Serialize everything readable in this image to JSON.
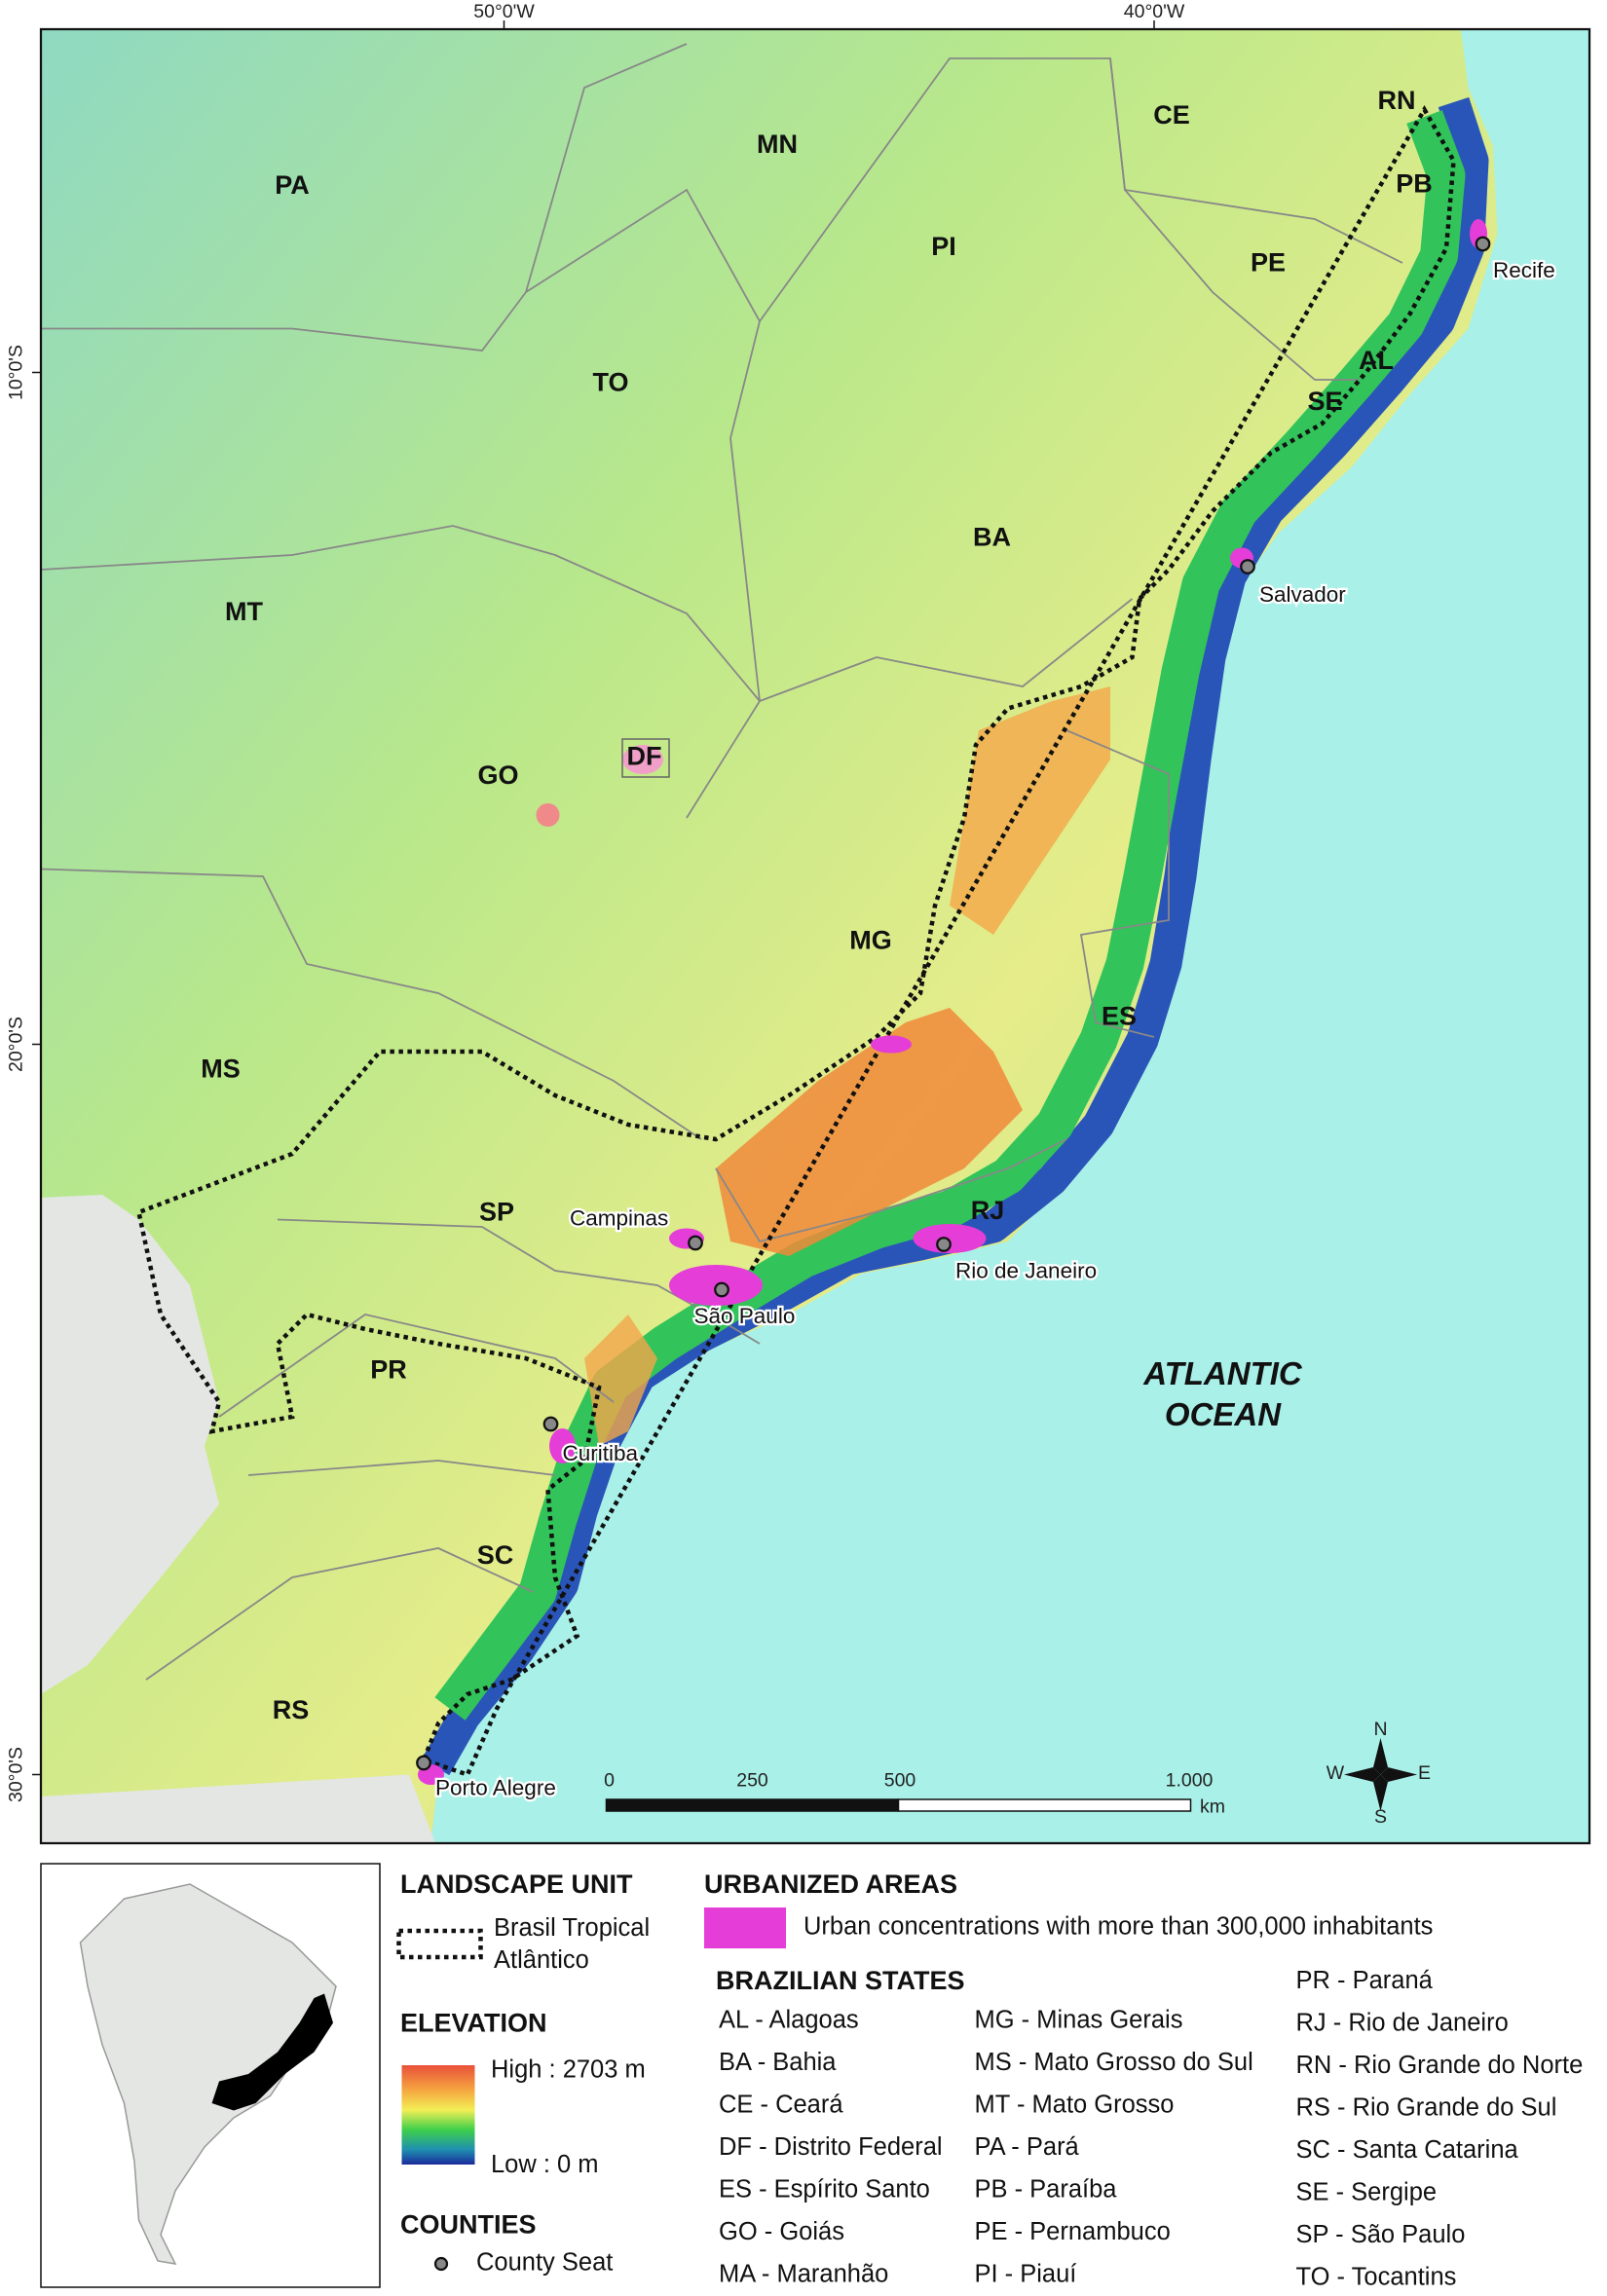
{
  "map": {
    "lon_labels": [
      "50°0'W",
      "40°0'W"
    ],
    "lat_labels": [
      "10°0'S",
      "20°0'S",
      "30°0'S"
    ],
    "states": [
      "PA",
      "MN",
      "CE",
      "RN",
      "PB",
      "PI",
      "PE",
      "AL",
      "SE",
      "TO",
      "BA",
      "MT",
      "DF",
      "GO",
      "MG",
      "ES",
      "MS",
      "SP",
      "RJ",
      "PR",
      "SC",
      "RS"
    ],
    "cities": [
      "Recife",
      "Salvador",
      "Campinas",
      "Rio de Janeiro",
      "São Paulo",
      "Curitiba",
      "Porto Alegre"
    ],
    "ocean": [
      "ATLANTIC",
      "OCEAN"
    ],
    "scale": {
      "ticks": [
        "0",
        "250",
        "500",
        "1.000"
      ],
      "unit": "km"
    },
    "compass": [
      "N",
      "E",
      "S",
      "W"
    ]
  },
  "legend": {
    "landscape_unit": {
      "title": "LANDSCAPE UNIT",
      "item": [
        "Brasil Tropical",
        "Atlântico"
      ]
    },
    "elevation": {
      "title": "ELEVATION",
      "high": "High : 2703 m",
      "low": "Low : 0 m"
    },
    "counties": {
      "title": "COUNTIES",
      "item": "County Seat"
    },
    "urbanized": {
      "title": "URBANIZED AREAS",
      "item": "Urban concentrations with more than 300,000 inhabitants"
    },
    "states": {
      "title": "BRAZILIAN STATES",
      "columns": [
        [
          "AL - Alagoas",
          "BA - Bahia",
          "CE - Ceará",
          "DF - Distrito Federal",
          "ES - Espírito Santo",
          "GO - Goiás",
          "MA - Maranhão"
        ],
        [
          "MG - Minas Gerais",
          "MS - Mato Grosso do Sul",
          "MT - Mato Grosso",
          "PA - Pará",
          "PB - Paraíba",
          "PE - Pernambuco",
          "PI - Piauí"
        ],
        [
          "PR - Paraná",
          "RJ - Rio de Janeiro",
          "RN - Rio Grande do Norte",
          "RS - Rio Grande do Sul",
          "SC - Santa Catarina",
          "SE - Sergipe",
          "SP - São Paulo",
          "TO - Tocantins"
        ]
      ]
    }
  }
}
